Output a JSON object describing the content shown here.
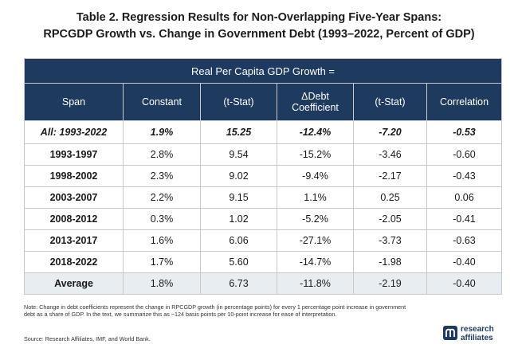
{
  "title": {
    "line1": "Table 2. Regression Results for Non-Overlapping Five-Year Spans:",
    "line2": "RPCGDP Growth vs. Change in Government Debt (1993–2022, Percent of GDP)"
  },
  "table": {
    "group_header": "Real Per Capita GDP Growth =",
    "headers": {
      "span": "Span",
      "constant": "Constant",
      "tstat1": "(t-Stat)",
      "debt_line1": "ΔDebt",
      "debt_line2": "Coefficient",
      "tstat2": "(t-Stat)",
      "correlation": "Correlation"
    },
    "all": {
      "span": "All: 1993-2022",
      "constant": "1.9%",
      "tstat1": "15.25",
      "debt": "-12.4%",
      "tstat2": "-7.20",
      "corr": "-0.53"
    },
    "rows": [
      {
        "span": "1993-1997",
        "constant": "2.8%",
        "tstat1": "9.54",
        "debt": "-15.2%",
        "tstat2": "-3.46",
        "corr": "-0.60"
      },
      {
        "span": "1998-2002",
        "constant": "2.3%",
        "tstat1": "9.02",
        "debt": "-9.4%",
        "tstat2": "-2.17",
        "corr": "-0.43"
      },
      {
        "span": "2003-2007",
        "constant": "2.2%",
        "tstat1": "9.15",
        "debt": "1.1%",
        "tstat2": "0.25",
        "corr": "0.06"
      },
      {
        "span": "2008-2012",
        "constant": "0.3%",
        "tstat1": "1.02",
        "debt": "-5.2%",
        "tstat2": "-2.05",
        "corr": "-0.41"
      },
      {
        "span": "2013-2017",
        "constant": "1.6%",
        "tstat1": "6.06",
        "debt": "-27.1%",
        "tstat2": "-3.73",
        "corr": "-0.63"
      },
      {
        "span": "2018-2022",
        "constant": "1.7%",
        "tstat1": "5.60",
        "debt": "-14.7%",
        "tstat2": "-1.98",
        "corr": "-0.40"
      }
    ],
    "average": {
      "span": "Average",
      "constant": "1.8%",
      "tstat1": "6.73",
      "debt": "-11.8%",
      "tstat2": "-2.19",
      "corr": "-0.40"
    }
  },
  "note": "Note: Change in debt coefficients represent the change in RPCGDP growth (in percentage points) for every 1 percentage point increase in government debt as a share of GDP. In the text, we summarize this as ~124 basis points per 10-point increase for ease of interpretation.",
  "source": "Source: Research Affiliates, IMF, and World Bank.",
  "logo": {
    "line1": "research",
    "line2": "affiliates",
    "icon": "research-affiliates-mark"
  },
  "colors": {
    "header_bg": "#1f3a5f",
    "average_bg": "#e8edf2"
  }
}
